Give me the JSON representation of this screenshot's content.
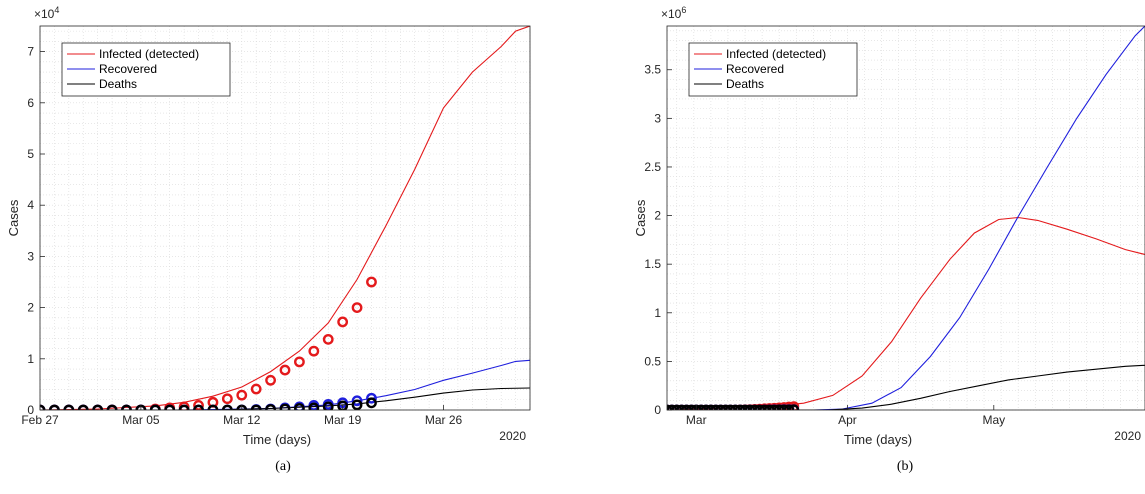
{
  "chart_data": [
    {
      "type": "line",
      "panel_label": "(a)",
      "xlabel": "Time (days)",
      "ylabel": "Cases",
      "y_exponent": "4",
      "year_label": "2020",
      "x_is_day_index_from": "Feb 27",
      "xlim": [
        0,
        34
      ],
      "ylim": [
        0,
        75000
      ],
      "x_ticks": [
        {
          "x": 0,
          "label": "Feb 27"
        },
        {
          "x": 7,
          "label": "Mar 05"
        },
        {
          "x": 14,
          "label": "Mar 12"
        },
        {
          "x": 21,
          "label": "Mar 19"
        },
        {
          "x": 28,
          "label": "Mar 26"
        }
      ],
      "y_ticks": [
        {
          "y": 0,
          "label": "0"
        },
        {
          "y": 10000,
          "label": "1"
        },
        {
          "y": 20000,
          "label": "2"
        },
        {
          "y": 30000,
          "label": "3"
        },
        {
          "y": 40000,
          "label": "4"
        },
        {
          "y": 50000,
          "label": "5"
        },
        {
          "y": 60000,
          "label": "6"
        },
        {
          "y": 70000,
          "label": "7"
        }
      ],
      "grid": true,
      "legend_position": "top-left",
      "series": [
        {
          "name": "Infected (detected)",
          "color": "#e41a1c",
          "kind": "line",
          "x": [
            0,
            4,
            8,
            10,
            12,
            14,
            16,
            18,
            20,
            22,
            24,
            26,
            28,
            30,
            32,
            33,
            34
          ],
          "y": [
            0,
            200,
            800,
            1500,
            2700,
            4500,
            7500,
            11500,
            17000,
            25500,
            36000,
            47000,
            59000,
            66000,
            71000,
            74000,
            75000
          ]
        },
        {
          "name": "Recovered",
          "color": "#1f1fdd",
          "kind": "line",
          "x": [
            0,
            10,
            16,
            20,
            22,
            24,
            26,
            28,
            30,
            32,
            33,
            34
          ],
          "y": [
            0,
            0,
            300,
            1000,
            1800,
            2800,
            4000,
            5800,
            7200,
            8700,
            9500,
            9700
          ]
        },
        {
          "name": "Deaths",
          "color": "#000000",
          "kind": "line",
          "x": [
            0,
            12,
            16,
            20,
            22,
            24,
            26,
            28,
            30,
            32,
            34
          ],
          "y": [
            0,
            0,
            300,
            800,
            1200,
            1800,
            2500,
            3300,
            3900,
            4200,
            4300
          ]
        },
        {
          "name": "",
          "color": "#e41a1c",
          "kind": "markers",
          "x": [
            0,
            1,
            2,
            3,
            4,
            5,
            6,
            7,
            8,
            9,
            10,
            11,
            12,
            13,
            14,
            15,
            16,
            17,
            18,
            19,
            20,
            21,
            22,
            23
          ],
          "y": [
            0,
            0,
            0,
            0,
            0,
            0,
            0,
            0,
            200,
            400,
            600,
            900,
            1500,
            2200,
            2900,
            4100,
            5800,
            7800,
            9400,
            11500,
            13800,
            17200,
            20000,
            25000
          ]
        },
        {
          "name": "",
          "color": "#1f1fdd",
          "kind": "markers",
          "x": [
            0,
            1,
            2,
            3,
            4,
            5,
            6,
            7,
            8,
            9,
            10,
            11,
            12,
            13,
            14,
            15,
            16,
            17,
            18,
            19,
            20,
            21,
            22,
            23
          ],
          "y": [
            0,
            0,
            0,
            0,
            0,
            0,
            0,
            0,
            0,
            0,
            0,
            0,
            0,
            0,
            0,
            100,
            200,
            400,
            600,
            900,
            1100,
            1400,
            1800,
            2300
          ]
        },
        {
          "name": "",
          "color": "#000000",
          "kind": "markers",
          "x": [
            0,
            1,
            2,
            3,
            4,
            5,
            6,
            7,
            8,
            9,
            10,
            11,
            12,
            13,
            14,
            15,
            16,
            17,
            18,
            19,
            20,
            21,
            22,
            23
          ],
          "y": [
            0,
            0,
            0,
            0,
            0,
            0,
            0,
            0,
            0,
            0,
            0,
            0,
            0,
            0,
            0,
            0,
            100,
            200,
            300,
            400,
            600,
            800,
            1000,
            1400
          ]
        }
      ]
    },
    {
      "type": "line",
      "panel_label": "(b)",
      "xlabel": "Time (days)",
      "ylabel": "Cases",
      "y_exponent": "6",
      "year_label": "2020",
      "x_is_day_index_from": "Feb 24",
      "xlim": [
        0,
        98
      ],
      "ylim": [
        0,
        3950000
      ],
      "x_ticks": [
        {
          "x": 6,
          "label": "Mar"
        },
        {
          "x": 37,
          "label": "Apr"
        },
        {
          "x": 67,
          "label": "May"
        }
      ],
      "y_ticks": [
        {
          "y": 0,
          "label": "0"
        },
        {
          "y": 500000,
          "label": "0.5"
        },
        {
          "y": 1000000,
          "label": "1"
        },
        {
          "y": 1500000,
          "label": "1.5"
        },
        {
          "y": 2000000,
          "label": "2"
        },
        {
          "y": 2500000,
          "label": "2.5"
        },
        {
          "y": 3000000,
          "label": "3"
        },
        {
          "y": 3500000,
          "label": "3.5"
        }
      ],
      "grid": true,
      "legend_position": "top-left",
      "series": [
        {
          "name": "Infected (detected)",
          "color": "#e41a1c",
          "kind": "line",
          "x": [
            0,
            20,
            28,
            34,
            40,
            46,
            52,
            58,
            63,
            68,
            72,
            76,
            82,
            88,
            94,
            98
          ],
          "y": [
            0,
            30000,
            70000,
            150000,
            350000,
            700000,
            1150000,
            1550000,
            1820000,
            1960000,
            1980000,
            1950000,
            1860000,
            1760000,
            1650000,
            1600000
          ]
        },
        {
          "name": "Recovered",
          "color": "#1f1fdd",
          "kind": "line",
          "x": [
            0,
            30,
            36,
            42,
            48,
            54,
            60,
            66,
            72,
            78,
            84,
            90,
            96,
            98
          ],
          "y": [
            0,
            0,
            10000,
            70000,
            230000,
            550000,
            950000,
            1450000,
            1990000,
            2500000,
            3000000,
            3450000,
            3850000,
            3950000
          ]
        },
        {
          "name": "Deaths",
          "color": "#000000",
          "kind": "line",
          "x": [
            0,
            33,
            40,
            46,
            52,
            58,
            64,
            70,
            76,
            82,
            88,
            94,
            98
          ],
          "y": [
            0,
            0,
            20000,
            60000,
            120000,
            190000,
            250000,
            310000,
            350000,
            390000,
            420000,
            450000,
            460000
          ]
        },
        {
          "name": "",
          "color": "#e41a1c",
          "kind": "markers",
          "x": [
            0,
            1,
            2,
            3,
            4,
            5,
            6,
            7,
            8,
            9,
            10,
            11,
            12,
            13,
            14,
            15,
            16,
            17,
            18,
            19,
            20,
            21,
            22,
            23,
            24,
            25,
            26
          ],
          "y": [
            0,
            0,
            0,
            0,
            0,
            0,
            0,
            0,
            0,
            0,
            0,
            0,
            0,
            0,
            0,
            1000,
            2000,
            4000,
            6000,
            9000,
            12000,
            15000,
            18000,
            22000,
            26000,
            30000,
            35000
          ]
        },
        {
          "name": "",
          "color": "#1f1fdd",
          "kind": "markers",
          "x": [
            0,
            1,
            2,
            3,
            4,
            5,
            6,
            7,
            8,
            9,
            10,
            11,
            12,
            13,
            14,
            15,
            16,
            17,
            18,
            19,
            20,
            21,
            22,
            23,
            24,
            25,
            26
          ],
          "y": [
            0,
            0,
            0,
            0,
            0,
            0,
            0,
            0,
            0,
            0,
            0,
            0,
            0,
            0,
            0,
            0,
            0,
            0,
            0,
            0,
            1000,
            1000,
            2000,
            2000,
            3000,
            3000,
            4000
          ]
        },
        {
          "name": "",
          "color": "#000000",
          "kind": "markers",
          "x": [
            0,
            1,
            2,
            3,
            4,
            5,
            6,
            7,
            8,
            9,
            10,
            11,
            12,
            13,
            14,
            15,
            16,
            17,
            18,
            19,
            20,
            21,
            22,
            23,
            24,
            25,
            26
          ],
          "y": [
            0,
            0,
            0,
            0,
            0,
            0,
            0,
            0,
            0,
            0,
            0,
            0,
            0,
            0,
            0,
            0,
            0,
            0,
            0,
            0,
            0,
            0,
            0,
            1000,
            1000,
            1000,
            2000
          ]
        }
      ]
    }
  ]
}
